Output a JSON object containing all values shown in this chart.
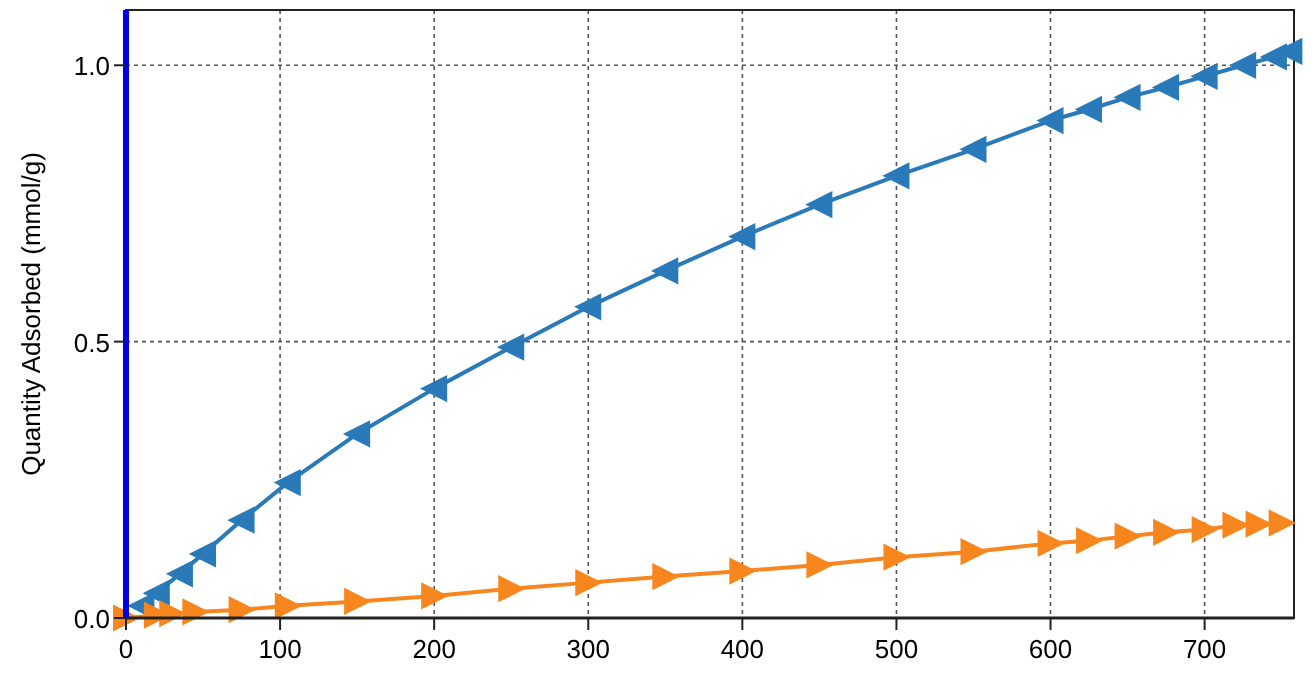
{
  "chart_data": {
    "type": "line",
    "ylabel": "Quantity Adsorbed (mmol/g)",
    "xlim": [
      0,
      758
    ],
    "ylim": [
      0,
      1.1
    ],
    "xticks": [
      0,
      100,
      200,
      300,
      400,
      500,
      600,
      700
    ],
    "yticks": [
      {
        "value": 0,
        "label": "0.0"
      },
      0.5,
      {
        "value": 1,
        "label": "1.0"
      }
    ],
    "grid": true,
    "marker": "triangle",
    "line_style": "solid",
    "series": [
      {
        "color": "#2a7ab9",
        "x": [
          10,
          20,
          35,
          50,
          75,
          105,
          150,
          200,
          250,
          300,
          350,
          400,
          450,
          500,
          550,
          600,
          625,
          650,
          675,
          700,
          725,
          745,
          755
        ],
        "values": [
          0.022,
          0.045,
          0.08,
          0.116,
          0.177,
          0.245,
          0.333,
          0.415,
          0.49,
          0.563,
          0.628,
          0.69,
          0.748,
          0.8,
          0.848,
          0.9,
          0.92,
          0.942,
          0.96,
          0.98,
          1.0,
          1.015,
          1.025
        ]
      },
      {
        "color": "#f7861f",
        "x": [
          0,
          20,
          30,
          45,
          75,
          105,
          150,
          200,
          250,
          300,
          350,
          400,
          450,
          500,
          550,
          600,
          625,
          650,
          675,
          700,
          720,
          735,
          750
        ],
        "values": [
          0,
          0.005,
          0.008,
          0.011,
          0.015,
          0.022,
          0.03,
          0.04,
          0.053,
          0.064,
          0.075,
          0.085,
          0.096,
          0.11,
          0.12,
          0.135,
          0.14,
          0.148,
          0.155,
          0.16,
          0.168,
          0.17,
          0.172
        ]
      }
    ]
  }
}
